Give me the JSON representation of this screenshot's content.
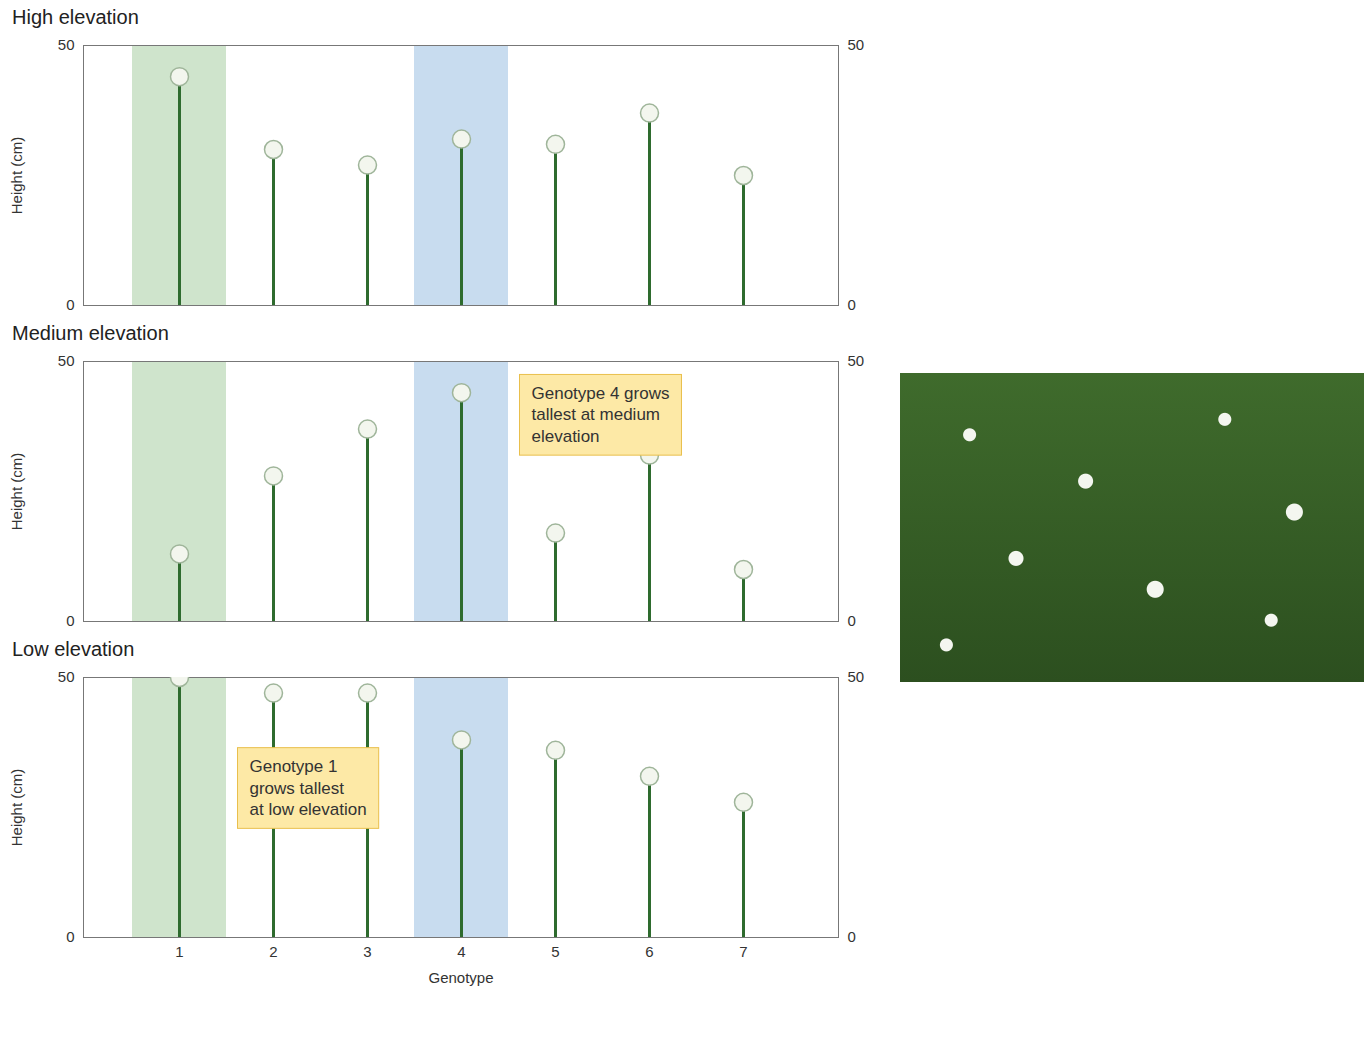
{
  "chart_data": [
    {
      "type": "lollipop",
      "title": "High elevation",
      "ylabel": "Height (cm)",
      "categories": [
        1,
        2,
        3,
        4,
        5,
        6,
        7
      ],
      "values": [
        44,
        30,
        27,
        32,
        31,
        37,
        25
      ],
      "color": "#2e6b2e",
      "ylim": [
        0,
        50
      ],
      "yticks": [
        0,
        50
      ],
      "grid": true,
      "tick_labels": "y",
      "highlights": [
        {
          "x": 1,
          "color": "#cfe4cc"
        },
        {
          "x": 4,
          "color": "#c8dcef"
        }
      ]
    },
    {
      "type": "lollipop",
      "title": "Medium elevation",
      "ylabel": "Height (cm)",
      "categories": [
        1,
        2,
        3,
        4,
        5,
        6,
        7
      ],
      "values": [
        13,
        28,
        37,
        44,
        17,
        32,
        10
      ],
      "color": "#2e6b2e",
      "ylim": [
        0,
        50
      ],
      "yticks": [
        0,
        50
      ],
      "grid": true,
      "tick_labels": "y",
      "highlights": [
        {
          "x": 1,
          "color": "#cfe4cc"
        },
        {
          "x": 4,
          "color": "#c8dcef"
        }
      ],
      "annotations": [
        {
          "text": "Genotype 4 grows\ntallest at medium\nelevation",
          "x": 4,
          "y": 40
        }
      ]
    },
    {
      "type": "lollipop",
      "title": "Low elevation",
      "ylabel": "Height (cm)",
      "xlabel": "Genotype",
      "categories": [
        1,
        2,
        3,
        4,
        5,
        6,
        7
      ],
      "values": [
        50,
        47,
        47,
        38,
        36,
        31,
        26
      ],
      "color": "#2e6b2e",
      "ylim": [
        0,
        50
      ],
      "yticks": [
        0,
        50
      ],
      "grid": true,
      "tick_labels": true,
      "highlights": [
        {
          "x": 1,
          "color": "#cfe4cc"
        },
        {
          "x": 4,
          "color": "#c8dcef"
        }
      ],
      "annotations": [
        {
          "text": "Genotype 1\ngrows tallest\nat low elevation",
          "x": 1,
          "y": 29
        }
      ]
    }
  ]
}
